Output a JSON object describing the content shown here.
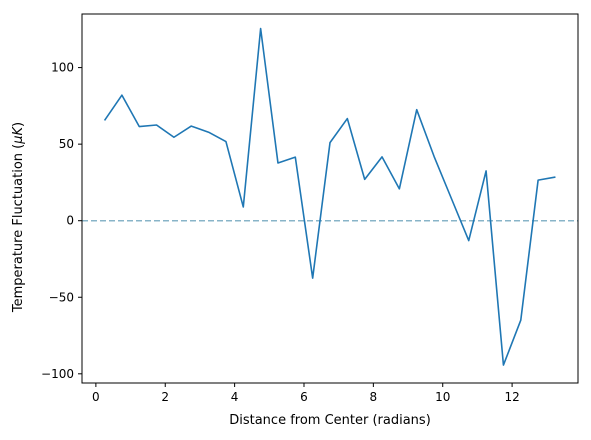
{
  "chart_data": {
    "type": "line",
    "title": "",
    "xlabel": "Distance from Center (radians)",
    "ylabel": "Temperature Fluctuation (μK)",
    "ylabel_parts": {
      "prefix": "Temperature Fluctuation (",
      "unit_italic": "μK",
      "suffix": ")"
    },
    "xlim": [
      -0.4,
      13.9
    ],
    "ylim": [
      -106,
      135
    ],
    "xticks": [
      0,
      2,
      4,
      6,
      8,
      10,
      12
    ],
    "yticks": [
      -100,
      -50,
      0,
      50,
      100
    ],
    "grid": false,
    "legend": "none",
    "series": [
      {
        "color": "#1f77b4",
        "x": [
          0.25,
          0.75,
          1.25,
          1.75,
          2.25,
          2.75,
          3.25,
          3.75,
          4.25,
          4.75,
          5.25,
          5.75,
          6.25,
          6.75,
          7.25,
          7.75,
          8.25,
          8.75,
          9.25,
          9.75,
          10.25,
          10.75,
          11.25,
          11.75,
          12.25,
          12.75,
          13.25
        ],
        "y": [
          65.5,
          82.0,
          61.5,
          62.5,
          54.5,
          61.8,
          57.8,
          51.7,
          9.0,
          125.5,
          37.7,
          41.5,
          -37.5,
          51.0,
          66.7,
          27.0,
          41.7,
          20.8,
          72.5,
          42.0,
          14.5,
          -13.0,
          32.5,
          -94.3,
          -65.0,
          26.5,
          28.5
        ]
      }
    ],
    "reference_lines": [
      {
        "axis": "y",
        "value": 0,
        "style": "dashed",
        "color": "#88b4c8"
      }
    ]
  }
}
